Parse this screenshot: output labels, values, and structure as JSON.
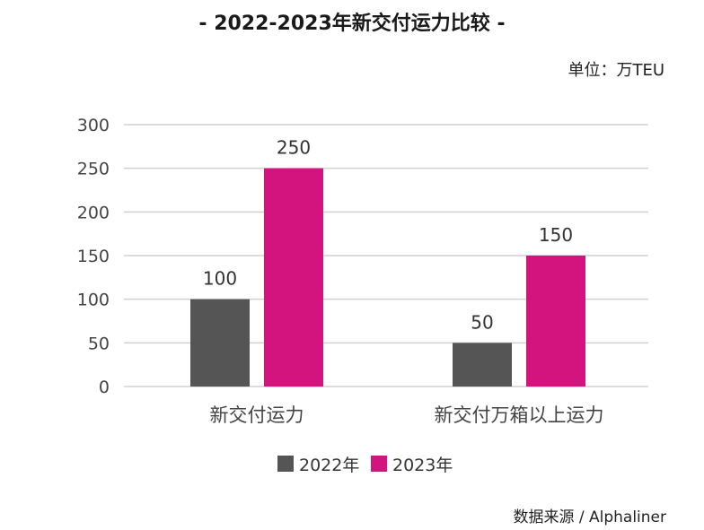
{
  "title": "- 2022-2023年新交付运力比较 -",
  "unit": "单位：万TEU",
  "source": "数据来源 / Alphaliner",
  "colors": {
    "series_2022": "#555555",
    "series_2023": "#d3147f",
    "grid": "#d0d0d0"
  },
  "chart_data": {
    "type": "bar",
    "title": "- 2022-2023年新交付运力比较 -",
    "xlabel": "",
    "ylabel": "",
    "categories": [
      "新交付运力",
      "新交付万箱以上运力"
    ],
    "series": [
      {
        "name": "2022年",
        "values": [
          100,
          50
        ]
      },
      {
        "name": "2023年",
        "values": [
          250,
          150
        ]
      }
    ],
    "ylim": [
      0,
      300
    ],
    "yticks": [
      0,
      50,
      100,
      150,
      200,
      250,
      300
    ],
    "grid": true,
    "legend": "bottom-center",
    "data_labels": true
  }
}
